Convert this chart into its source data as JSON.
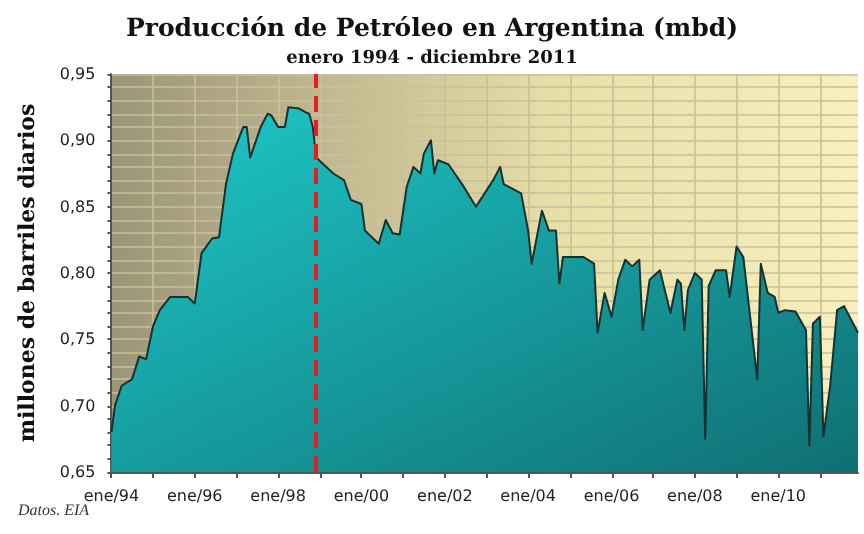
{
  "chart_data": {
    "type": "area",
    "title": "Producción de Petróleo en Argentina (mbd)",
    "subtitle": "enero 1994 - diciembre 2011",
    "ylabel": "millones de barriles diarios",
    "annotations": [
      "Datos. EIA"
    ],
    "x": [
      "1994-01",
      "1994-02",
      "1994-04",
      "1994-07",
      "1994-09",
      "1994-11",
      "1995-01",
      "1995-03",
      "1995-06",
      "1995-11",
      "1996-01",
      "1996-03",
      "1996-06",
      "1996-08",
      "1996-10",
      "1996-12",
      "1997-03",
      "1997-04",
      "1997-05",
      "1997-08",
      "1997-10",
      "1997-11",
      "1998-01",
      "1998-03",
      "1998-04",
      "1998-07",
      "1998-09",
      "1998-10",
      "1998-11",
      "1998-12",
      "1999-02",
      "1999-05",
      "1999-08",
      "1999-10",
      "2000-01",
      "2000-02",
      "2000-04",
      "2000-06",
      "2000-08",
      "2000-10",
      "2000-12",
      "2001-02",
      "2001-04",
      "2001-06",
      "2001-07",
      "2001-09",
      "2001-10",
      "2001-11",
      "2002-02",
      "2002-06",
      "2002-10",
      "2003-03",
      "2003-05",
      "2003-06",
      "2003-11",
      "2004-01",
      "2004-02",
      "2004-05",
      "2004-07",
      "2004-09",
      "2004-10",
      "2004-11",
      "2005-05",
      "2005-08",
      "2005-09",
      "2005-11",
      "2006-01",
      "2006-03",
      "2006-05",
      "2006-07",
      "2006-09",
      "2006-10",
      "2006-12",
      "2007-03",
      "2007-06",
      "2007-08",
      "2007-09",
      "2007-10",
      "2007-11",
      "2008-01",
      "2008-03",
      "2008-04",
      "2008-05",
      "2008-07",
      "2008-10",
      "2008-11",
      "2009-01",
      "2009-03",
      "2009-07",
      "2009-08",
      "2009-10",
      "2009-12",
      "2010-01",
      "2010-03",
      "2010-06",
      "2010-09",
      "2010-10",
      "2010-11",
      "2011-01",
      "2011-02",
      "2011-04",
      "2011-06",
      "2011-08",
      "2011-10",
      "2011-12"
    ],
    "series": [
      {
        "color": "#1ec9c9",
        "values": [
          0.68,
          0.7,
          0.715,
          0.72,
          0.737,
          0.735,
          0.76,
          0.772,
          0.782,
          0.782,
          0.777,
          0.815,
          0.826,
          0.827,
          0.867,
          0.89,
          0.91,
          0.91,
          0.887,
          0.91,
          0.92,
          0.919,
          0.91,
          0.91,
          0.925,
          0.924,
          0.921,
          0.92,
          0.91,
          0.887,
          0.882,
          0.875,
          0.87,
          0.855,
          0.852,
          0.832,
          0.827,
          0.822,
          0.84,
          0.83,
          0.829,
          0.865,
          0.88,
          0.875,
          0.89,
          0.9,
          0.875,
          0.885,
          0.882,
          0.867,
          0.85,
          0.87,
          0.88,
          0.867,
          0.86,
          0.832,
          0.807,
          0.847,
          0.832,
          0.832,
          0.792,
          0.812,
          0.812,
          0.807,
          0.755,
          0.785,
          0.767,
          0.795,
          0.81,
          0.805,
          0.81,
          0.757,
          0.795,
          0.802,
          0.77,
          0.795,
          0.792,
          0.757,
          0.787,
          0.8,
          0.795,
          0.675,
          0.79,
          0.802,
          0.802,
          0.782,
          0.82,
          0.812,
          0.72,
          0.807,
          0.785,
          0.782,
          0.77,
          0.772,
          0.771,
          0.757,
          0.67,
          0.762,
          0.767,
          0.677,
          0.715,
          0.772,
          0.775,
          0.765,
          0.755
        ]
      }
    ],
    "xlim": [
      "1994-01",
      "2011-12"
    ],
    "xticks": [
      {
        "value": "1994-01",
        "label": "ene/94"
      },
      {
        "value": "1995-01",
        "label": null
      },
      {
        "value": "1996-01",
        "label": "ene/96"
      },
      {
        "value": "1997-01",
        "label": null
      },
      {
        "value": "1998-01",
        "label": "ene/98"
      },
      {
        "value": "1999-01",
        "label": null
      },
      {
        "value": "2000-01",
        "label": "ene/00"
      },
      {
        "value": "2001-01",
        "label": null
      },
      {
        "value": "2002-01",
        "label": "ene/02"
      },
      {
        "value": "2003-01",
        "label": null
      },
      {
        "value": "2004-01",
        "label": "ene/04"
      },
      {
        "value": "2005-01",
        "label": null
      },
      {
        "value": "2006-01",
        "label": "ene/06"
      },
      {
        "value": "2007-01",
        "label": null
      },
      {
        "value": "2008-01",
        "label": "ene/08"
      },
      {
        "value": "2009-01",
        "label": null
      },
      {
        "value": "2010-01",
        "label": "ene/10"
      },
      {
        "value": "2011-01",
        "label": null
      }
    ],
    "ylim": [
      0.65,
      0.95
    ],
    "yticks": [
      {
        "value": 0.65,
        "label": "0,65"
      },
      {
        "value": 0.66,
        "label": null
      },
      {
        "value": 0.67,
        "label": null
      },
      {
        "value": 0.68,
        "label": null
      },
      {
        "value": 0.69,
        "label": null
      },
      {
        "value": 0.7,
        "label": "0,70"
      },
      {
        "value": 0.71,
        "label": null
      },
      {
        "value": 0.72,
        "label": null
      },
      {
        "value": 0.73,
        "label": null
      },
      {
        "value": 0.74,
        "label": null
      },
      {
        "value": 0.75,
        "label": "0,75"
      },
      {
        "value": 0.76,
        "label": null
      },
      {
        "value": 0.77,
        "label": null
      },
      {
        "value": 0.78,
        "label": null
      },
      {
        "value": 0.79,
        "label": null
      },
      {
        "value": 0.8,
        "label": "0,80"
      },
      {
        "value": 0.81,
        "label": null
      },
      {
        "value": 0.82,
        "label": null
      },
      {
        "value": 0.83,
        "label": null
      },
      {
        "value": 0.84,
        "label": null
      },
      {
        "value": 0.85,
        "label": "0,85"
      },
      {
        "value": 0.86,
        "label": null
      },
      {
        "value": 0.87,
        "label": null
      },
      {
        "value": 0.88,
        "label": null
      },
      {
        "value": 0.89,
        "label": null
      },
      {
        "value": 0.9,
        "label": "0,90"
      },
      {
        "value": 0.91,
        "label": null
      },
      {
        "value": 0.92,
        "label": null
      },
      {
        "value": 0.93,
        "label": null
      },
      {
        "value": 0.94,
        "label": null
      },
      {
        "value": 0.95,
        "label": "0,95"
      }
    ],
    "ref_lines": [
      {
        "axis": "x",
        "value": "1998-12",
        "color": "#e02020",
        "line_style": "dashed"
      }
    ],
    "grid": true,
    "marker": "none",
    "line_style": "solid"
  }
}
